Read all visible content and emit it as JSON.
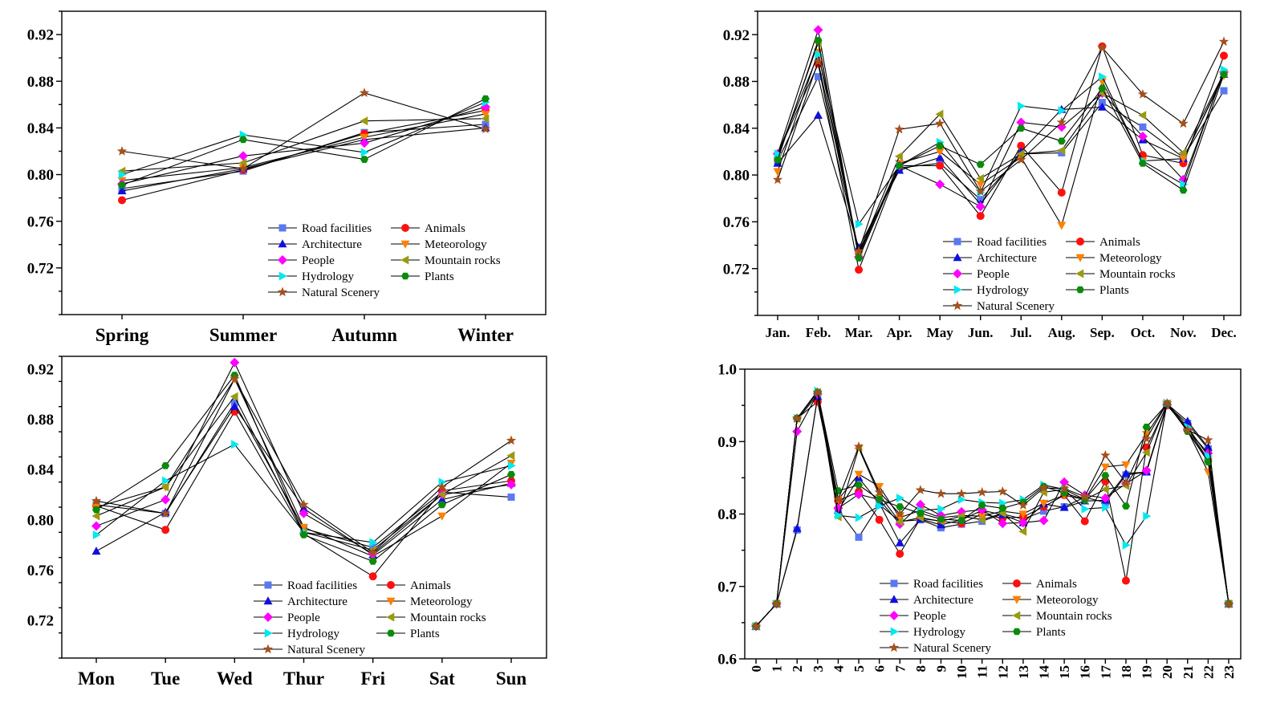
{
  "chart_data": [
    {
      "id": "season",
      "type": "line",
      "categories": [
        "Spring",
        "Summer",
        "Autumn",
        "Winter"
      ],
      "ylim": [
        0.68,
        0.94
      ],
      "yticks": [
        "0.72",
        "0.76",
        "0.80",
        "0.84",
        "0.88",
        "0.92"
      ],
      "series": [
        {
          "name": "Road facilities",
          "values": [
            0.788,
            0.803,
            0.836,
            0.843
          ]
        },
        {
          "name": "Animals",
          "values": [
            0.778,
            0.804,
            0.835,
            0.855
          ]
        },
        {
          "name": "Architecture",
          "values": [
            0.786,
            0.805,
            0.83,
            0.84
          ]
        },
        {
          "name": "Meteorology",
          "values": [
            0.795,
            0.806,
            0.832,
            0.852
          ]
        },
        {
          "name": "People",
          "values": [
            0.792,
            0.816,
            0.827,
            0.858
          ]
        },
        {
          "name": "Mountain rocks",
          "values": [
            0.803,
            0.81,
            0.846,
            0.848
          ]
        },
        {
          "name": "Hydrology",
          "values": [
            0.8,
            0.834,
            0.819,
            0.862
          ]
        },
        {
          "name": "Plants",
          "values": [
            0.791,
            0.83,
            0.813,
            0.865
          ]
        },
        {
          "name": "Natural Scenery",
          "values": [
            0.82,
            0.805,
            0.87,
            0.839
          ]
        }
      ]
    },
    {
      "id": "month",
      "type": "line",
      "categories": [
        "Jan.",
        "Feb.",
        "Mar.",
        "Apr.",
        "May",
        "Jun.",
        "Jul.",
        "Aug.",
        "Sep.",
        "Oct.",
        "Nov.",
        "Dec."
      ],
      "ylim": [
        0.68,
        0.94
      ],
      "yticks": [
        "0.72",
        "0.76",
        "0.80",
        "0.84",
        "0.88",
        "0.92"
      ],
      "series": [
        {
          "name": "Road facilities",
          "values": [
            0.812,
            0.884,
            0.735,
            0.806,
            0.81,
            0.779,
            0.818,
            0.819,
            0.862,
            0.841,
            0.815,
            0.872
          ]
        },
        {
          "name": "Animals",
          "values": [
            0.818,
            0.895,
            0.719,
            0.808,
            0.808,
            0.765,
            0.825,
            0.785,
            0.91,
            0.817,
            0.81,
            0.902
          ]
        },
        {
          "name": "Architecture",
          "values": [
            0.81,
            0.851,
            0.738,
            0.804,
            0.815,
            0.775,
            0.82,
            0.856,
            0.858,
            0.83,
            0.814,
            0.886
          ]
        },
        {
          "name": "Meteorology",
          "values": [
            0.803,
            0.905,
            0.732,
            0.81,
            0.82,
            0.792,
            0.815,
            0.757,
            0.88,
            0.812,
            0.814,
            0.885
          ]
        },
        {
          "name": "People",
          "values": [
            0.818,
            0.924,
            0.73,
            0.808,
            0.792,
            0.773,
            0.845,
            0.841,
            0.87,
            0.833,
            0.796,
            0.888
          ]
        },
        {
          "name": "Mountain rocks",
          "values": [
            0.815,
            0.913,
            0.733,
            0.816,
            0.852,
            0.797,
            0.818,
            0.821,
            0.87,
            0.851,
            0.819,
            0.887
          ]
        },
        {
          "name": "Hydrology",
          "values": [
            0.818,
            0.903,
            0.758,
            0.808,
            0.828,
            0.785,
            0.859,
            0.855,
            0.884,
            0.812,
            0.792,
            0.89
          ]
        },
        {
          "name": "Plants",
          "values": [
            0.813,
            0.915,
            0.729,
            0.808,
            0.825,
            0.809,
            0.84,
            0.829,
            0.874,
            0.81,
            0.787,
            0.886
          ]
        },
        {
          "name": "Natural Scenery",
          "values": [
            0.796,
            0.897,
            0.735,
            0.839,
            0.844,
            0.786,
            0.813,
            0.845,
            0.909,
            0.869,
            0.844,
            0.914
          ]
        }
      ]
    },
    {
      "id": "week",
      "type": "line",
      "categories": [
        "Mon",
        "Tue",
        "Wed",
        "Thur",
        "Fri",
        "Sat",
        "Sun"
      ],
      "ylim": [
        0.69,
        0.93
      ],
      "yticks": [
        "0.72",
        "0.76",
        "0.80",
        "0.84",
        "0.88",
        "0.92"
      ],
      "series": [
        {
          "name": "Road facilities",
          "values": [
            0.812,
            0.805,
            0.893,
            0.793,
            0.778,
            0.822,
            0.818
          ]
        },
        {
          "name": "Animals",
          "values": [
            0.811,
            0.792,
            0.886,
            0.789,
            0.755,
            0.823,
            0.831
          ]
        },
        {
          "name": "Architecture",
          "values": [
            0.775,
            0.806,
            0.89,
            0.809,
            0.772,
            0.816,
            0.829
          ]
        },
        {
          "name": "Meteorology",
          "values": [
            0.81,
            0.826,
            0.912,
            0.794,
            0.771,
            0.803,
            0.845
          ]
        },
        {
          "name": "People",
          "values": [
            0.795,
            0.816,
            0.925,
            0.805,
            0.773,
            0.82,
            0.828
          ]
        },
        {
          "name": "Mountain rocks",
          "values": [
            0.803,
            0.826,
            0.898,
            0.79,
            0.776,
            0.82,
            0.851
          ]
        },
        {
          "name": "Hydrology",
          "values": [
            0.788,
            0.831,
            0.86,
            0.79,
            0.782,
            0.83,
            0.843
          ]
        },
        {
          "name": "Plants",
          "values": [
            0.808,
            0.843,
            0.915,
            0.788,
            0.767,
            0.812,
            0.836
          ]
        },
        {
          "name": "Natural Scenery",
          "values": [
            0.815,
            0.805,
            0.912,
            0.812,
            0.774,
            0.826,
            0.863
          ]
        }
      ]
    },
    {
      "id": "hour",
      "type": "line",
      "categories": [
        "0",
        "1",
        "2",
        "3",
        "4",
        "5",
        "6",
        "7",
        "8",
        "9",
        "10",
        "11",
        "12",
        "13",
        "14",
        "15",
        "16",
        "17",
        "18",
        "19",
        "20",
        "21",
        "22",
        "23"
      ],
      "ylim": [
        0.6,
        1.0
      ],
      "yticks": [
        "0.6",
        "0.7",
        "0.8",
        "0.9",
        "1.0"
      ],
      "series": [
        {
          "name": "Road facilities",
          "values": [
            0.645,
            0.676,
            0.778,
            0.963,
            0.806,
            0.768,
            0.813,
            0.79,
            0.792,
            0.781,
            0.786,
            0.79,
            0.8,
            0.793,
            0.804,
            0.81,
            0.823,
            0.816,
            0.854,
            0.858,
            0.95,
            0.925,
            0.89,
            0.676
          ]
        },
        {
          "name": "Animals",
          "values": [
            0.645,
            0.676,
            0.932,
            0.955,
            0.818,
            0.831,
            0.792,
            0.745,
            0.794,
            0.79,
            0.787,
            0.8,
            0.794,
            0.796,
            0.81,
            0.826,
            0.79,
            0.845,
            0.708,
            0.892,
            0.95,
            0.918,
            0.875,
            0.676
          ]
        },
        {
          "name": "Architecture",
          "values": [
            0.645,
            0.676,
            0.78,
            0.962,
            0.805,
            0.85,
            0.815,
            0.76,
            0.793,
            0.785,
            0.792,
            0.805,
            0.799,
            0.788,
            0.814,
            0.809,
            0.818,
            0.819,
            0.856,
            0.858,
            0.952,
            0.928,
            0.892,
            0.676
          ]
        },
        {
          "name": "Meteorology",
          "values": [
            0.645,
            0.676,
            0.93,
            0.965,
            0.82,
            0.855,
            0.838,
            0.795,
            0.805,
            0.795,
            0.798,
            0.797,
            0.804,
            0.8,
            0.815,
            0.826,
            0.82,
            0.865,
            0.868,
            0.91,
            0.953,
            0.915,
            0.858,
            0.676
          ]
        },
        {
          "name": "People",
          "values": [
            0.645,
            0.676,
            0.914,
            0.966,
            0.808,
            0.827,
            0.82,
            0.786,
            0.813,
            0.798,
            0.803,
            0.806,
            0.787,
            0.788,
            0.791,
            0.844,
            0.826,
            0.822,
            0.842,
            0.86,
            0.951,
            0.916,
            0.884,
            0.676
          ]
        },
        {
          "name": "Mountain rocks",
          "values": [
            0.645,
            0.676,
            0.932,
            0.968,
            0.796,
            0.891,
            0.826,
            0.789,
            0.795,
            0.79,
            0.797,
            0.792,
            0.801,
            0.776,
            0.83,
            0.834,
            0.82,
            0.834,
            0.839,
            0.885,
            0.952,
            0.915,
            0.873,
            0.676
          ]
        },
        {
          "name": "Hydrology",
          "values": [
            0.645,
            0.676,
            0.932,
            0.97,
            0.798,
            0.795,
            0.811,
            0.822,
            0.805,
            0.807,
            0.82,
            0.816,
            0.815,
            0.82,
            0.84,
            0.834,
            0.807,
            0.809,
            0.757,
            0.797,
            0.953,
            0.92,
            0.88,
            0.676
          ]
        },
        {
          "name": "Plants",
          "values": [
            0.645,
            0.676,
            0.932,
            0.968,
            0.832,
            0.84,
            0.82,
            0.81,
            0.801,
            0.793,
            0.791,
            0.812,
            0.808,
            0.816,
            0.838,
            0.829,
            0.82,
            0.853,
            0.811,
            0.92,
            0.952,
            0.914,
            0.872,
            0.676
          ]
        },
        {
          "name": "Natural Scenery",
          "values": [
            0.645,
            0.676,
            0.932,
            0.968,
            0.82,
            0.893,
            0.83,
            0.8,
            0.833,
            0.828,
            0.828,
            0.83,
            0.831,
            0.812,
            0.836,
            0.835,
            0.824,
            0.881,
            0.843,
            0.904,
            0.953,
            0.916,
            0.902,
            0.676
          ]
        }
      ]
    }
  ],
  "legend": {
    "items": [
      {
        "name": "Road facilities",
        "color": "#5b78f0",
        "marker": "square"
      },
      {
        "name": "Animals",
        "color": "#ff1010",
        "marker": "circle"
      },
      {
        "name": "Architecture",
        "color": "#0f0fe0",
        "marker": "triangle-up"
      },
      {
        "name": "Meteorology",
        "color": "#ff8000",
        "marker": "triangle-down"
      },
      {
        "name": "People",
        "color": "#ff00ff",
        "marker": "diamond"
      },
      {
        "name": "Mountain rocks",
        "color": "#9a9a12",
        "marker": "triangle-left"
      },
      {
        "name": "Hydrology",
        "color": "#00e8f0",
        "marker": "triangle-right"
      },
      {
        "name": "Plants",
        "color": "#0b8a0b",
        "marker": "hexagon"
      },
      {
        "name": "Natural Scenery",
        "color": "#a5501c",
        "marker": "star"
      }
    ]
  }
}
